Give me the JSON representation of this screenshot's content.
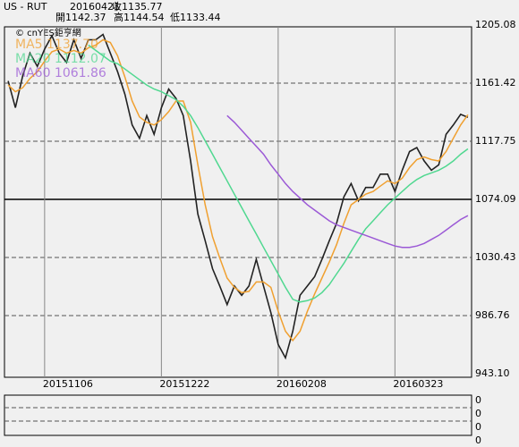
{
  "chart_data": {
    "type": "line",
    "header": [
      "US - RUT",
      "20160421",
      "收1135.77",
      "開1142.37",
      "高1144.54",
      "低1133.44"
    ],
    "source": "© cnYES鉅亨網",
    "categories": [
      null,
      null,
      null,
      null,
      null,
      "20151106",
      null,
      null,
      null,
      null,
      null,
      null,
      null,
      null,
      null,
      null,
      null,
      null,
      null,
      null,
      null,
      "20151222",
      null,
      null,
      null,
      null,
      null,
      null,
      null,
      null,
      null,
      null,
      null,
      null,
      null,
      null,
      null,
      "20160208",
      null,
      null,
      null,
      null,
      null,
      null,
      null,
      null,
      null,
      null,
      null,
      null,
      null,
      null,
      null,
      "20160323",
      null,
      null,
      null,
      null,
      null,
      null,
      null,
      null,
      null,
      null
    ],
    "series": [
      {
        "color": "#222222",
        "values": [
          1163,
          1143,
          1167,
          1184,
          1174,
          1187,
          1197,
          1184,
          1177,
          1194,
          1180,
          1194,
          1194,
          1198,
          1184,
          1170,
          1153,
          1130,
          1120,
          1137,
          1123,
          1143,
          1157,
          1150,
          1137,
          1103,
          1063,
          1043,
          1022,
          1009,
          995,
          1009,
          1002,
          1009,
          1029,
          1009,
          989,
          965,
          955,
          975,
          1002,
          1009,
          1016,
          1029,
          1043,
          1056,
          1076,
          1086,
          1073,
          1083,
          1083,
          1093,
          1093,
          1080,
          1096,
          1110,
          1113,
          1103,
          1096,
          1100,
          1123,
          1130,
          1138,
          1135.77
        ]
      },
      {
        "name": "MA5 1137.70",
        "color": "#f0a030",
        "values": [
          1160,
          1155,
          1158,
          1165,
          1170,
          1178,
          1185,
          1187,
          1184,
          1186,
          1184,
          1188,
          1190,
          1194,
          1192,
          1182,
          1166,
          1148,
          1136,
          1132,
          1130,
          1134,
          1140,
          1148,
          1148,
          1132,
          1100,
          1070,
          1046,
          1030,
          1015,
          1008,
          1004,
          1005,
          1012,
          1012,
          1008,
          990,
          975,
          968,
          975,
          990,
          1003,
          1015,
          1027,
          1040,
          1056,
          1070,
          1074,
          1078,
          1080,
          1084,
          1088,
          1086,
          1090,
          1098,
          1104,
          1106,
          1104,
          1103,
          1110,
          1120,
          1130,
          1137.7
        ]
      },
      {
        "name": "MA20 1112.07",
        "color": "#50d890",
        "values": [
          null,
          null,
          null,
          null,
          null,
          null,
          null,
          null,
          null,
          null,
          null,
          1190,
          1186,
          1182,
          1178,
          1176,
          1172,
          1168,
          1164,
          1160,
          1157,
          1155,
          1152,
          1149,
          1144,
          1137,
          1128,
          1118,
          1108,
          1098,
          1088,
          1078,
          1068,
          1058,
          1048,
          1038,
          1028,
          1018,
          1008,
          999,
          997,
          998,
          1000,
          1004,
          1010,
          1018,
          1026,
          1035,
          1044,
          1052,
          1058,
          1064,
          1070,
          1075,
          1080,
          1085,
          1089,
          1092,
          1094,
          1096,
          1099,
          1103,
          1108,
          1112.07
        ]
      },
      {
        "name": "MA60 1061.86",
        "color": "#9b59d6",
        "values": [
          null,
          null,
          null,
          null,
          null,
          null,
          null,
          null,
          null,
          null,
          null,
          null,
          null,
          null,
          null,
          null,
          null,
          null,
          null,
          null,
          null,
          null,
          null,
          null,
          null,
          null,
          null,
          null,
          null,
          null,
          1137,
          1132,
          1126,
          1120,
          1114,
          1108,
          1100,
          1093,
          1086,
          1080,
          1075,
          1070,
          1066,
          1062,
          1058,
          1055,
          1053,
          1051,
          1049,
          1047,
          1045,
          1043,
          1041,
          1039,
          1038,
          1038,
          1039,
          1041,
          1044,
          1047,
          1051,
          1055,
          1059,
          1061.86
        ]
      }
    ],
    "ylim": [
      943.1,
      1205.08
    ],
    "yticks": [
      {
        "value": 943.1,
        "label": "943.10"
      },
      986.76,
      1030.43,
      1074.09,
      1117.75,
      1161.42,
      1205.08
    ],
    "lower_panel_labels": [
      "0",
      "0",
      "0",
      "0"
    ]
  }
}
